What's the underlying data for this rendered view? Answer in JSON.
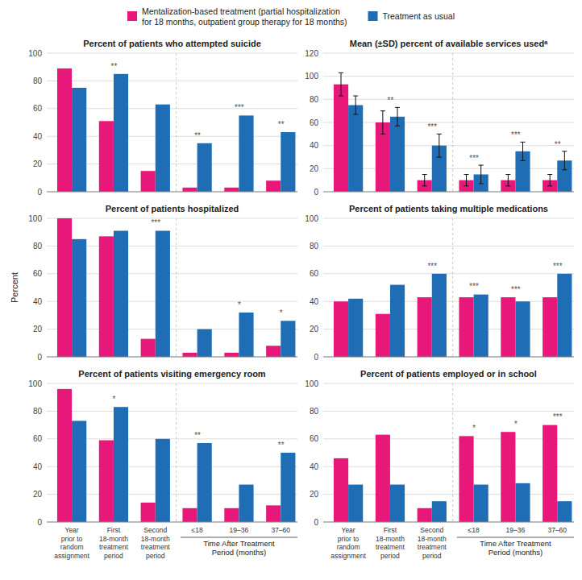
{
  "chart_data": [
    {
      "type": "bar",
      "title": "Percent of patients who attempted suicide",
      "categories": [
        null,
        null,
        null,
        null,
        null,
        null
      ],
      "series": [
        {
          "name": "Mentalization-based treatment (partial hospitalization\nfor 18 months, outpatient group therapy for 18 months)",
          "color": "#E8187A",
          "values": [
            89,
            51,
            15,
            3,
            3,
            8
          ]
        },
        {
          "name": "Treatment as usual",
          "color": "#1F6EB5",
          "values": [
            75,
            85,
            63,
            35,
            55,
            43
          ]
        }
      ],
      "annotations": [
        null,
        "**",
        null,
        "**",
        "***",
        "**"
      ],
      "ylim": [
        0,
        100
      ],
      "yticks": [
        0,
        20,
        40,
        60,
        80,
        100
      ],
      "grid": true,
      "legend": "top",
      "tick_labels": "y"
    },
    {
      "type": "bar",
      "title": "Mean (±SD) percent of available services usedᵃ",
      "categories": [
        null,
        null,
        null,
        null,
        null,
        null
      ],
      "series": [
        {
          "color": "#E8187A",
          "values": [
            93,
            60,
            10,
            10,
            10,
            10
          ],
          "errors": [
            10,
            10,
            5,
            5,
            5,
            5
          ]
        },
        {
          "color": "#1F6EB5",
          "values": [
            75,
            65,
            40,
            15,
            35,
            27
          ],
          "errors": [
            8,
            8,
            10,
            8,
            8,
            8
          ]
        }
      ],
      "annotations": [
        null,
        "**",
        "***",
        "***",
        "***",
        "**"
      ],
      "ylim": [
        0,
        120
      ],
      "yticks": [
        0,
        20,
        40,
        60,
        80,
        100,
        120
      ],
      "grid": true,
      "tick_labels": "y"
    },
    {
      "type": "bar",
      "title": "Percent of patients hospitalized",
      "ylabel": "Percent",
      "categories": [
        null,
        null,
        null,
        null,
        null,
        null
      ],
      "series": [
        {
          "color": "#E8187A",
          "values": [
            100,
            87,
            13,
            3,
            3,
            8
          ]
        },
        {
          "color": "#1F6EB5",
          "values": [
            85,
            91,
            91,
            20,
            32,
            26
          ]
        }
      ],
      "annotations": [
        null,
        null,
        "***",
        null,
        "*",
        "*"
      ],
      "ylim": [
        0,
        100
      ],
      "yticks": [
        0,
        20,
        40,
        60,
        80,
        100
      ],
      "grid": true,
      "tick_labels": "y"
    },
    {
      "type": "bar",
      "title": "Percent of patients taking multiple medications",
      "categories": [
        null,
        null,
        null,
        null,
        null,
        null
      ],
      "series": [
        {
          "color": "#E8187A",
          "values": [
            40,
            31,
            43,
            43,
            43,
            43
          ]
        },
        {
          "color": "#1F6EB5",
          "values": [
            42,
            52,
            60,
            45,
            40,
            60
          ]
        }
      ],
      "annotations": [
        null,
        null,
        "***",
        "***",
        "***",
        "***"
      ],
      "ylim": [
        0,
        100
      ],
      "yticks": [
        0,
        20,
        40,
        60,
        80,
        100
      ],
      "grid": true,
      "tick_labels": "y"
    },
    {
      "type": "bar",
      "title": "Percent of patients visiting emergency room",
      "xlabel": "Time After Treatment\nPeriod (months)",
      "categories": [
        "Year\nprior to\nrandom\nassignment",
        "First\n18-month\ntreatment\nperiod",
        "Second\n18-month\ntreatment\nperiod",
        "≤18",
        "19–36",
        "37–60"
      ],
      "series": [
        {
          "color": "#E8187A",
          "values": [
            96,
            59,
            14,
            10,
            10,
            12
          ]
        },
        {
          "color": "#1F6EB5",
          "values": [
            73,
            83,
            60,
            57,
            27,
            50
          ]
        }
      ],
      "annotations": [
        null,
        "*",
        null,
        "**",
        null,
        "**"
      ],
      "ylim": [
        0,
        100
      ],
      "yticks": [
        0,
        20,
        40,
        60,
        80,
        100
      ],
      "grid": true
    },
    {
      "type": "bar",
      "title": "Percent of patients employed or in school",
      "xlabel": "Time After Treatment\nPeriod (months)",
      "categories": [
        "Year\nprior to\nrandom\nassignment",
        "First\n18-month\ntreatment\nperiod",
        "Second\n18-month\ntreatment\nperiod",
        "≤18",
        "19–36",
        "37–60"
      ],
      "series": [
        {
          "color": "#E8187A",
          "values": [
            46,
            63,
            10,
            62,
            65,
            70
          ]
        },
        {
          "color": "#1F6EB5",
          "values": [
            27,
            27,
            15,
            27,
            28,
            15
          ]
        }
      ],
      "annotations": [
        null,
        null,
        null,
        "*",
        "*",
        "***"
      ],
      "ylim": [
        0,
        100
      ],
      "yticks": [
        0,
        20,
        40,
        60,
        80,
        100
      ],
      "grid": true
    }
  ]
}
